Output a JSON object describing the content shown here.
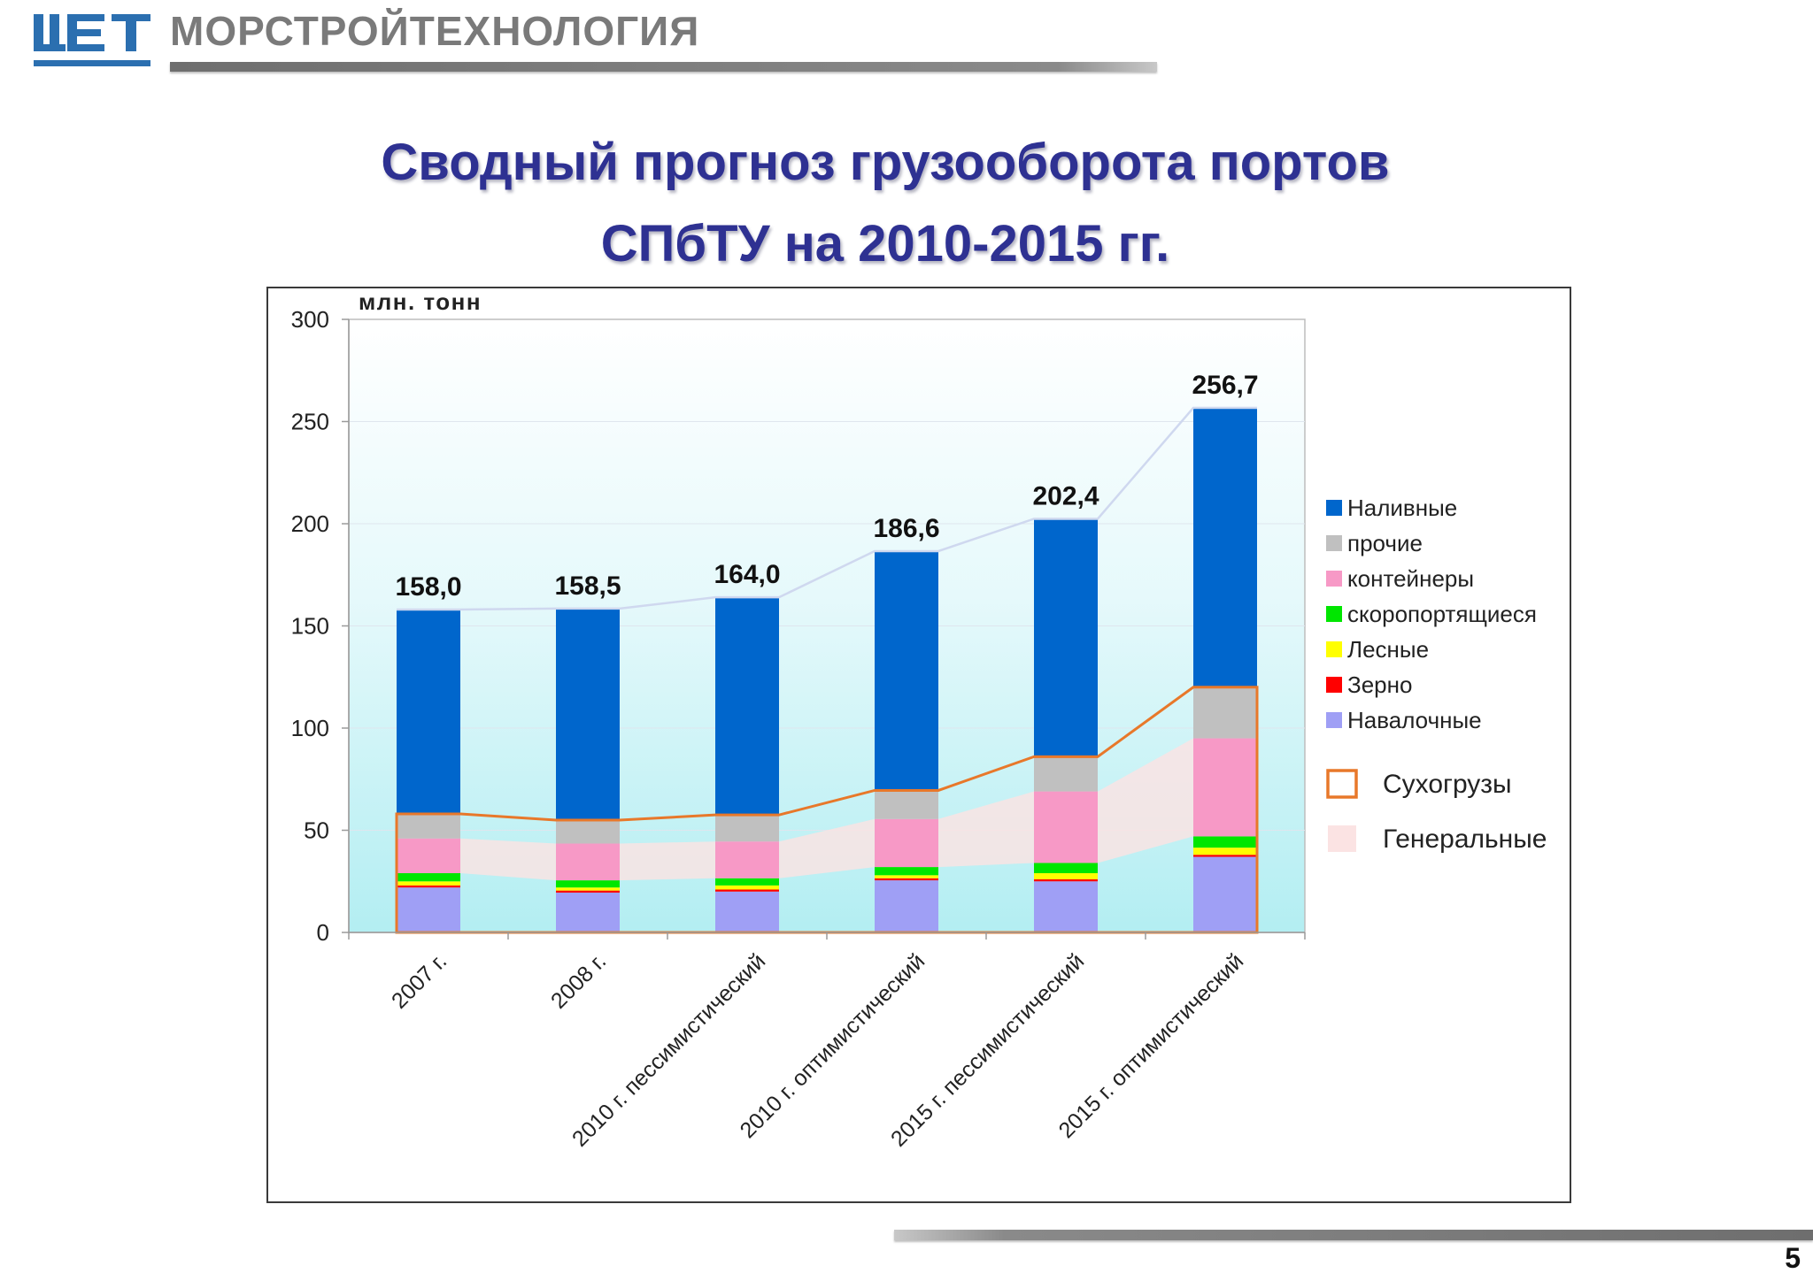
{
  "header": {
    "company": "МОРСТРОЙТЕХНОЛОГИЯ"
  },
  "slide": {
    "title_line1": "Сводный прогноз грузооборота портов",
    "title_line2": "СПбТУ на 2010-2015 гг.",
    "page_number": "5"
  },
  "colors": {
    "title": "#2e3192",
    "logo": "#2b6fb0",
    "dry_cargo_outline": "#e8782a",
    "general_cargo_fill": "#fbe3e3",
    "total_line": "#cfd8ef"
  },
  "chart_data": {
    "type": "bar",
    "stacked": true,
    "ylabel": "млн. тонн",
    "ylim": [
      0,
      300
    ],
    "yticks": [
      0,
      50,
      100,
      150,
      200,
      250,
      300
    ],
    "categories": [
      "2007 г.",
      "2008 г.",
      "2010 г. пессимистический",
      "2010 г. оптимистический",
      "2015 г. пессимистический",
      "2015 г. оптимистический"
    ],
    "totals": [
      "158,0",
      "158,5",
      "164,0",
      "186,6",
      "202,4",
      "256,7"
    ],
    "total_values": [
      158.0,
      158.5,
      164.0,
      186.6,
      202.4,
      256.7
    ],
    "series": [
      {
        "name": "Навалочные",
        "color": "#9f9ff5",
        "values": [
          22,
          19.5,
          20,
          25.5,
          25,
          37
        ]
      },
      {
        "name": "Зерно",
        "color": "#ff0000",
        "values": [
          1,
          1,
          1,
          1,
          1,
          1
        ]
      },
      {
        "name": "Лесные",
        "color": "#ffff00",
        "values": [
          2,
          1.5,
          2,
          1.5,
          3,
          3.5
        ]
      },
      {
        "name": "скоропортящиеся",
        "color": "#00e600",
        "values": [
          4,
          3.5,
          3.5,
          4,
          5,
          5.5
        ]
      },
      {
        "name": "контейнеры",
        "color": "#f799c6",
        "values": [
          17,
          18,
          18,
          23.5,
          35,
          48
        ]
      },
      {
        "name": "прочие",
        "color": "#c0c0c0",
        "values": [
          12,
          11.5,
          13,
          14,
          17,
          25
        ]
      },
      {
        "name": "Наливные",
        "color": "#0066cc",
        "values": [
          100,
          103.5,
          106.5,
          117.1,
          116.4,
          136.7
        ]
      }
    ],
    "overlay_legend": [
      {
        "name": "Сухогрузы",
        "kind": "outline",
        "color": "#e8782a"
      },
      {
        "name": "Генеральные",
        "kind": "fill",
        "color": "#fbe3e3"
      }
    ],
    "grid": true,
    "legend_position": "right"
  }
}
